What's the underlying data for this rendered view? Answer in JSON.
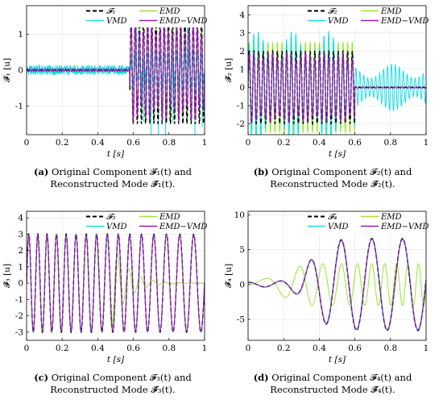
{
  "colors": {
    "reference": "#000000",
    "emd": "#99e62e",
    "vmd": "#1ce0e0",
    "emdvmd": "#9b1bb5"
  },
  "charts": [
    {
      "label": "(a)",
      "caption_line1": "Original Component 𝓕₁(t) and",
      "caption_line2": "Reconstructed Mode 𝓕̂₁(t).",
      "ylabel": "𝓕̂₁ [u]",
      "xlabel": "t [s]",
      "xlim": [
        0,
        1
      ],
      "ylim": [
        -1.8,
        1.8
      ],
      "yticks": [
        "-1",
        "0",
        "1"
      ],
      "xticks": [
        "0",
        "0.2",
        "0.4",
        "0.6",
        "0.8",
        "1"
      ],
      "legend": [
        "𝓕₁",
        "EMD",
        "VMD",
        "EMD−VMD"
      ]
    },
    {
      "label": "(b)",
      "caption_line1": "Original Component 𝓕₂(t) and",
      "caption_line2": "Reconstructed Mode 𝓕̂₂(t).",
      "ylabel": "𝓕̂₂ [u]",
      "xlabel": "t [s]",
      "xlim": [
        0,
        1
      ],
      "ylim": [
        -2.6,
        4.5
      ],
      "yticks": [
        "-2",
        "-1",
        "0",
        "1",
        "2",
        "3",
        "4"
      ],
      "xticks": [
        "0",
        "0.2",
        "0.4",
        "0.6",
        "0.8",
        "1"
      ],
      "legend": [
        "𝓕₂",
        "EMD",
        "VMD",
        "EMD−VMD"
      ]
    },
    {
      "label": "(c)",
      "caption_line1": "Original Component 𝓕₃(t) and",
      "caption_line2": "Reconstructed Mode 𝓕̂₃(t).",
      "ylabel": "𝓕̂₃ [u]",
      "xlabel": "t [s]",
      "xlim": [
        0,
        1
      ],
      "ylim": [
        -3.5,
        4.4
      ],
      "yticks": [
        "-3",
        "-2",
        "-1",
        "0",
        "1",
        "2",
        "3",
        "4"
      ],
      "xticks": [
        "0",
        "0.2",
        "0.4",
        "0.6",
        "0.8",
        "1"
      ],
      "legend": [
        "𝓕₃",
        "EMD",
        "VMD",
        "EMD−VMD"
      ]
    },
    {
      "label": "(d)",
      "caption_line1": "Original Component 𝓕₄(t) and",
      "caption_line2": "Reconstructed Mode 𝓕̂₄(t).",
      "ylabel": "𝓕̂₄ [u]",
      "xlabel": "t [s]",
      "xlim": [
        0,
        1
      ],
      "ylim": [
        -8,
        10.5
      ],
      "yticks": [
        "-5",
        "0",
        "5",
        "10"
      ],
      "xticks": [
        "0",
        "0.2",
        "0.4",
        "0.6",
        "0.8",
        "1"
      ],
      "legend": [
        "𝓕₄",
        "EMD",
        "VMD",
        "EMD−VMD"
      ]
    }
  ],
  "chart_data": [
    {
      "type": "line",
      "panel": "a",
      "x_range": [
        0,
        1
      ],
      "series": [
        {
          "name": "𝓕₁",
          "description_values": {
            "t<0.58": 0,
            "t>0.58": "sinusoid amplitude 1.5, ~43 cycles"
          }
        },
        {
          "name": "EMD",
          "description_values": {
            "overall": "follows 𝓕₁ after 0.58, near 0 before"
          }
        },
        {
          "name": "VMD",
          "description_values": {
            "t<0.58": "noise ±0.15",
            "t>0.58": "spikes to ±1.8"
          }
        },
        {
          "name": "EMD−VMD",
          "description_values": {
            "t>0.58": "amplitude ~1.5"
          }
        }
      ]
    },
    {
      "type": "line",
      "panel": "b",
      "x_range": [
        0,
        1
      ],
      "series": [
        {
          "name": "𝓕₂",
          "description_values": {
            "t<0.6": "sinusoid amplitude 2.0",
            "t>0.6": 0
          }
        },
        {
          "name": "EMD",
          "description_values": {
            "t<0.6": "amplitude up to 2.6",
            "t>0.6": "~0"
          }
        },
        {
          "name": "VMD",
          "description_values": {
            "t<0.6": "amplitude up to 3.3",
            "t>0.6": "amplitude ~1.2"
          }
        },
        {
          "name": "EMD−VMD",
          "description_values": {
            "t<0.6": "amplitude ~2.0",
            "t>0.6": "~0"
          }
        }
      ]
    },
    {
      "type": "line",
      "panel": "c",
      "x_range": [
        0,
        1
      ],
      "series": [
        {
          "name": "𝓕₃",
          "description_values": {
            "overall": "sinusoid amplitude 3, frequency decreasing ~20 to ~12 Hz"
          }
        },
        {
          "name": "EMD",
          "description_values": {
            "t<0.47": "amplitude 3",
            "t>0.47": "decays to ~0"
          }
        },
        {
          "name": "VMD",
          "description_values": {
            "overall": "follows 𝓕₃"
          }
        },
        {
          "name": "EMD−VMD",
          "description_values": {
            "overall": "follows 𝓕₃"
          }
        }
      ]
    },
    {
      "type": "line",
      "panel": "d",
      "x_range": [
        0,
        1
      ],
      "series": [
        {
          "name": "𝓕₄",
          "description_values": {
            "peaks": [
              0.35,
              0.53,
              0.7,
              0.87
            ],
            "peak_values": [
              4,
              6.5,
              6.5,
              6.5
            ],
            "troughs": [
              0.27,
              0.44,
              0.62,
              0.79,
              0.96
            ],
            "trough_values": [
              -2,
              -5,
              -6,
              -6,
              -6
            ]
          }
        },
        {
          "name": "EMD",
          "description_values": {
            "overall": "oscillation amplitude ~3 at ~6 Hz"
          }
        },
        {
          "name": "VMD",
          "description_values": {
            "overall": "follows 𝓕₄"
          }
        },
        {
          "name": "EMD−VMD",
          "description_values": {
            "overall": "follows 𝓕₄"
          }
        }
      ]
    }
  ]
}
